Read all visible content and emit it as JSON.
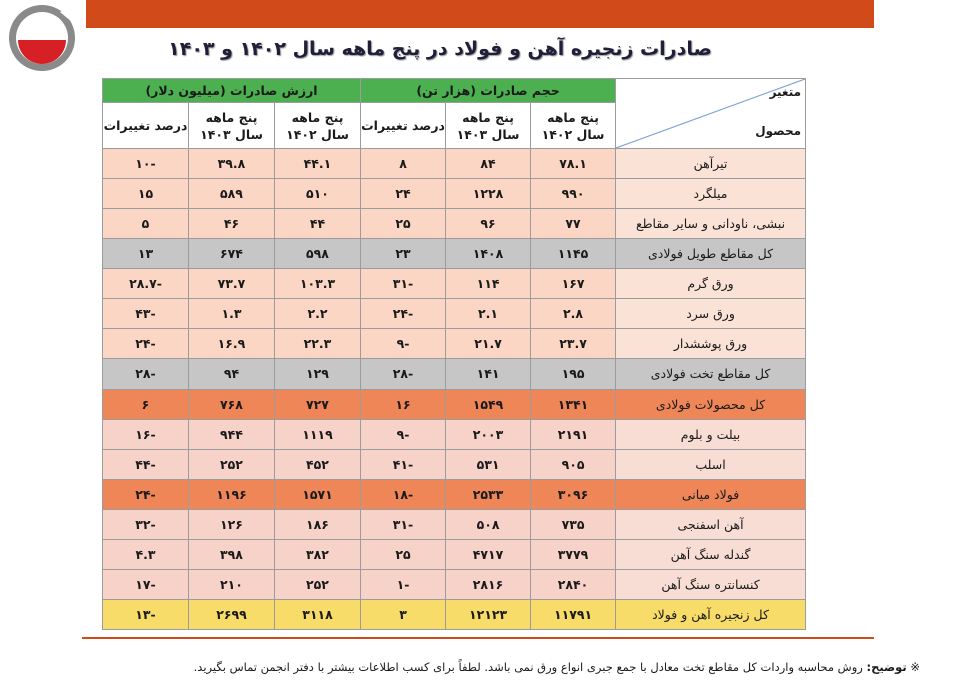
{
  "title": "صادرات زنجیره آهن و فولاد در پنج ماهه سال ۱۴۰۲ و ۱۴۰۳",
  "header": {
    "corner_top": "متغیر",
    "corner_bottom": "محصول",
    "group_volume": "حجم صادرات (هزار تن)",
    "group_value": "ارزش صادرات (میلیون دلار)",
    "sub_1402_line1": "پنج ماهه",
    "sub_1402_line2": "سال ۱۴۰۲",
    "sub_1403_line1": "پنج ماهه",
    "sub_1403_line2": "سال ۱۴۰۳",
    "sub_change": "درصد تغییرات"
  },
  "rows": [
    {
      "name": "تیرآهن",
      "style": "light",
      "v1402": "۷۸.۱",
      "v1403": "۸۴",
      "vchg": "۸",
      "d1402": "۴۴.۱",
      "d1403": "۳۹.۸",
      "dchg": "-۱۰"
    },
    {
      "name": "میلگرد",
      "style": "light",
      "v1402": "۹۹۰",
      "v1403": "۱۲۲۸",
      "vchg": "۲۴",
      "d1402": "۵۱۰",
      "d1403": "۵۸۹",
      "dchg": "۱۵"
    },
    {
      "name": "نبشی، ناودانی و سایر مقاطع",
      "style": "light",
      "v1402": "۷۷",
      "v1403": "۹۶",
      "vchg": "۲۵",
      "d1402": "۴۴",
      "d1403": "۴۶",
      "dchg": "۵"
    },
    {
      "name": "کل مقاطع طویل فولادی",
      "style": "gray",
      "v1402": "۱۱۴۵",
      "v1403": "۱۴۰۸",
      "vchg": "۲۳",
      "d1402": "۵۹۸",
      "d1403": "۶۷۴",
      "dchg": "۱۳"
    },
    {
      "name": "ورق گرم",
      "style": "light",
      "v1402": "۱۶۷",
      "v1403": "۱۱۴",
      "vchg": "-۳۱",
      "d1402": "۱۰۳.۳",
      "d1403": "۷۳.۷",
      "dchg": "-۲۸.۷"
    },
    {
      "name": "ورق سرد",
      "style": "light",
      "v1402": "۲.۸",
      "v1403": "۲.۱",
      "vchg": "-۲۴",
      "d1402": "۲.۲",
      "d1403": "۱.۳",
      "dchg": "-۴۳"
    },
    {
      "name": "ورق پوششدار",
      "style": "light",
      "v1402": "۲۳.۷",
      "v1403": "۲۱.۷",
      "vchg": "-۹",
      "d1402": "۲۲.۳",
      "d1403": "۱۶.۹",
      "dchg": "-۲۴"
    },
    {
      "name": "کل مقاطع تخت فولادی",
      "style": "gray",
      "v1402": "۱۹۵",
      "v1403": "۱۴۱",
      "vchg": "-۲۸",
      "d1402": "۱۲۹",
      "d1403": "۹۴",
      "dchg": "-۲۸"
    },
    {
      "name": "کل محصولات فولادی",
      "style": "orange",
      "v1402": "۱۳۴۱",
      "v1403": "۱۵۴۹",
      "vchg": "۱۶",
      "d1402": "۷۲۷",
      "d1403": "۷۶۸",
      "dchg": "۶"
    },
    {
      "name": "بیلت و بلوم",
      "style": "pink",
      "v1402": "۲۱۹۱",
      "v1403": "۲۰۰۳",
      "vchg": "-۹",
      "d1402": "۱۱۱۹",
      "d1403": "۹۴۴",
      "dchg": "-۱۶"
    },
    {
      "name": "اسلب",
      "style": "pink",
      "v1402": "۹۰۵",
      "v1403": "۵۳۱",
      "vchg": "-۴۱",
      "d1402": "۴۵۲",
      "d1403": "۲۵۲",
      "dchg": "-۴۴"
    },
    {
      "name": "فولاد میانی",
      "style": "orange",
      "v1402": "۳۰۹۶",
      "v1403": "۲۵۳۳",
      "vchg": "-۱۸",
      "d1402": "۱۵۷۱",
      "d1403": "۱۱۹۶",
      "dchg": "-۲۴"
    },
    {
      "name": "آهن اسفنجی",
      "style": "pink",
      "v1402": "۷۳۵",
      "v1403": "۵۰۸",
      "vchg": "-۳۱",
      "d1402": "۱۸۶",
      "d1403": "۱۲۶",
      "dchg": "-۳۲"
    },
    {
      "name": "گندله سنگ آهن",
      "style": "pink",
      "v1402": "۳۷۷۹",
      "v1403": "۴۷۱۷",
      "vchg": "۲۵",
      "d1402": "۳۸۲",
      "d1403": "۳۹۸",
      "dchg": "۴.۳"
    },
    {
      "name": "کنسانتره سنگ آهن",
      "style": "pink",
      "v1402": "۲۸۴۰",
      "v1403": "۲۸۱۶",
      "vchg": "-۱",
      "d1402": "۲۵۲",
      "d1403": "۲۱۰",
      "dchg": "-۱۷"
    },
    {
      "name": "کل زنجیره آهن و فولاد",
      "style": "yellow",
      "v1402": "۱۱۷۹۱",
      "v1403": "۱۲۱۲۳",
      "vchg": "۳",
      "d1402": "۳۱۱۸",
      "d1403": "۲۶۹۹",
      "dchg": "-۱۳"
    }
  ],
  "footnote": {
    "marker": "※",
    "label": "توضیح:",
    "text": "روش محاسبه واردات کل مقاطع تخت معادل با جمع جبری انواع ورق نمی باشد. لطفاً برای کسب اطلاعات بیشتر با دفتر انجمن تماس بگیرید."
  },
  "colors": {
    "accent": "#d04a1a",
    "header_green": "#4caf50",
    "row_light": "#fbd6c4",
    "row_gray": "#c6c6c6",
    "row_orange": "#ee8658",
    "row_pink": "#f6d2c8",
    "row_yellow": "#f7dc6a"
  },
  "logo_icon": "association-logo-icon"
}
